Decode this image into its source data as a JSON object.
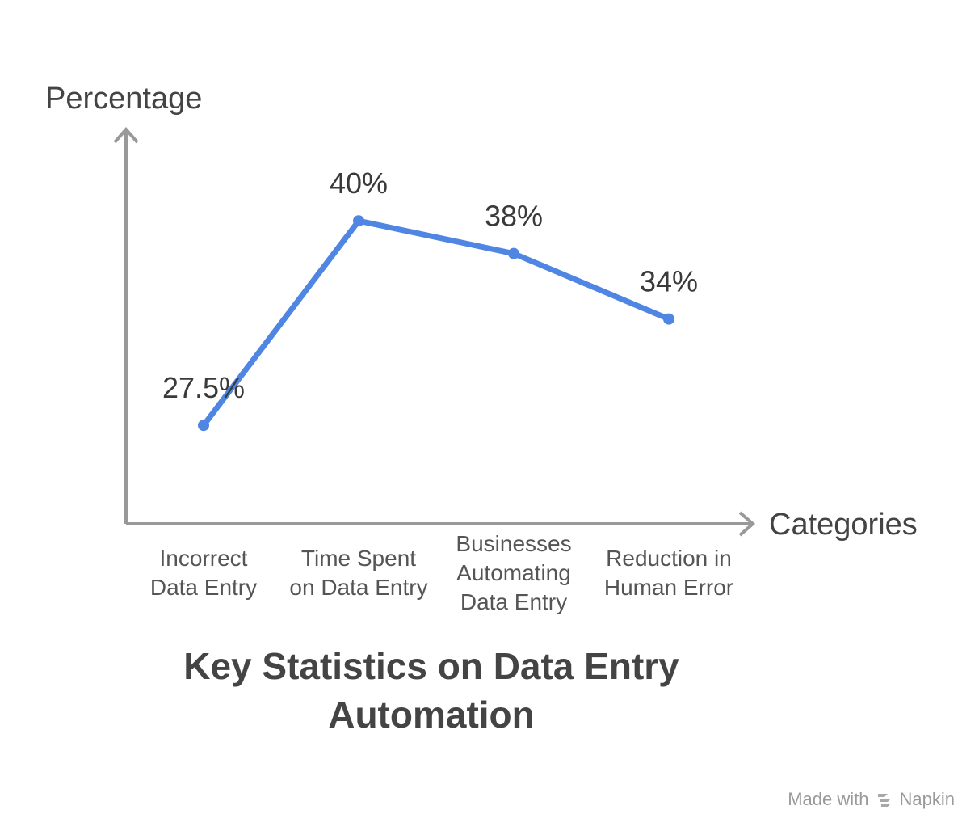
{
  "chart_data": {
    "type": "line",
    "title": "Key Statistics on Data Entry Automation",
    "xlabel": "Categories",
    "ylabel": "Percentage",
    "categories": [
      [
        "Incorrect",
        "Data Entry"
      ],
      [
        "Time Spent",
        "on Data Entry"
      ],
      [
        "Businesses",
        "Automating",
        "Data Entry"
      ],
      [
        "Reduction in",
        "Human Error"
      ]
    ],
    "values": [
      27.5,
      40,
      38,
      34
    ],
    "value_labels": [
      "27.5%",
      "40%",
      "38%",
      "34%"
    ],
    "ylim": [
      20,
      45
    ],
    "grid": false,
    "line_color": "#4f86e3",
    "axis_color": "#999999"
  },
  "footer": {
    "made_with": "Made with",
    "brand": "Napkin"
  }
}
